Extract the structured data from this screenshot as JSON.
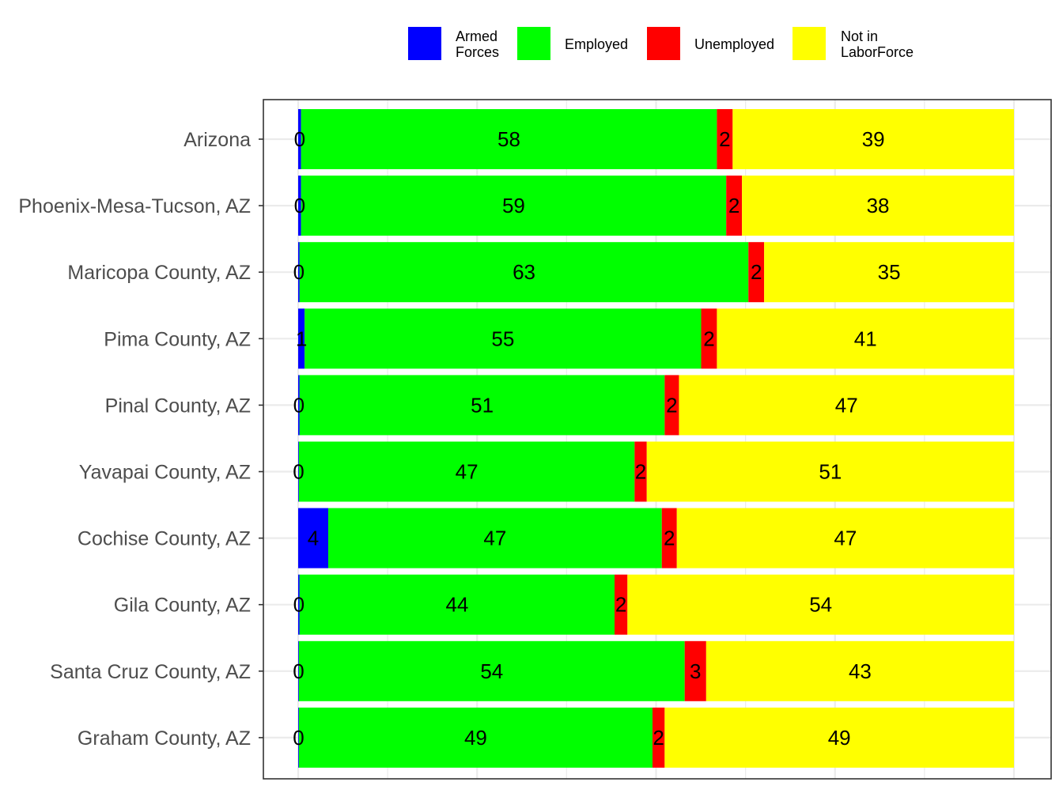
{
  "chart_data": {
    "type": "bar",
    "orientation": "horizontal",
    "stacked": true,
    "grid": true,
    "legend_position": "top",
    "xlim": [
      0,
      100
    ],
    "categories": [
      "Arizona",
      "Phoenix-Mesa-Tucson, AZ",
      "Maricopa County, AZ",
      "Pima County, AZ",
      "Pinal County, AZ",
      "Yavapai County, AZ",
      "Cochise County, AZ",
      "Gila County, AZ",
      "Santa Cruz County, AZ",
      "Graham County, AZ"
    ],
    "series": [
      {
        "name": "Armed Forces",
        "legend_lines": [
          "Armed",
          "Forces"
        ],
        "color": "#0000ff",
        "values": [
          0.4,
          0.4,
          0.2,
          0.9,
          0.2,
          0.1,
          4.2,
          0.2,
          0.1,
          0.1
        ],
        "labels": [
          "0",
          "0",
          "0",
          "1",
          "0",
          "0",
          "4",
          "0",
          "0",
          "0"
        ]
      },
      {
        "name": "Employed",
        "legend_lines": [
          "Employed"
        ],
        "color": "#00ff00",
        "values": [
          58.1,
          59.4,
          62.7,
          55.4,
          51.0,
          46.9,
          46.6,
          44.0,
          53.9,
          49.4
        ],
        "labels": [
          "58",
          "59",
          "63",
          "55",
          "51",
          "47",
          "47",
          "44",
          "54",
          "49"
        ]
      },
      {
        "name": "Unemployed",
        "legend_lines": [
          "Unemployed"
        ],
        "color": "#ff0000",
        "values": [
          2.2,
          2.2,
          2.2,
          2.2,
          2.0,
          1.7,
          2.1,
          1.8,
          3.0,
          1.7
        ],
        "labels": [
          "2",
          "2",
          "2",
          "2",
          "2",
          "2",
          "2",
          "2",
          "3",
          "2"
        ]
      },
      {
        "name": "Not in LaborForce",
        "legend_lines": [
          "Not in",
          "LaborForce"
        ],
        "color": "#ffff00",
        "values": [
          39.3,
          38.0,
          34.9,
          41.5,
          46.8,
          51.3,
          47.1,
          54.0,
          43.0,
          48.8
        ],
        "labels": [
          "39",
          "38",
          "35",
          "41",
          "47",
          "51",
          "47",
          "54",
          "43",
          "49"
        ]
      }
    ]
  }
}
